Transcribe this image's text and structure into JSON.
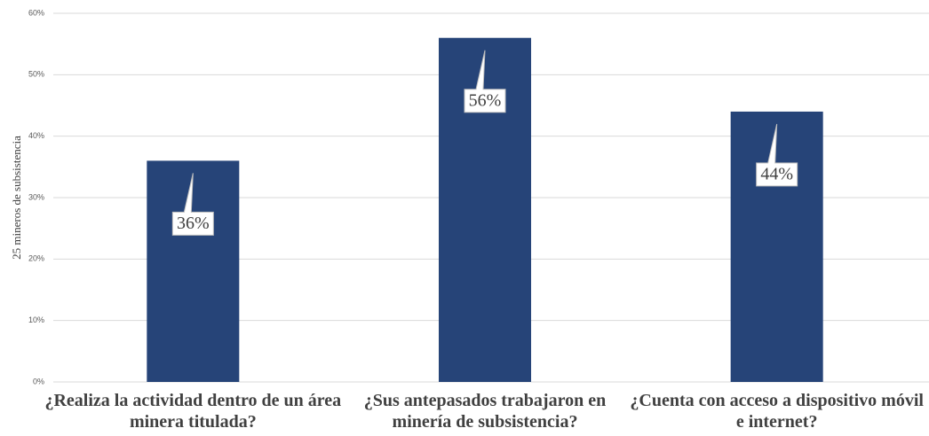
{
  "chart_data": {
    "type": "bar",
    "y_label": "25 mineros de subsistencia",
    "categories": [
      "¿Realiza la actividad dentro de un área minera titulada?",
      "¿Sus antepasados trabajaron en minería de subsistencia?",
      "¿Cuenta con acceso a dispositivo móvil e internet?"
    ],
    "values": [
      36,
      56,
      44
    ],
    "value_labels": [
      "36%",
      "56%",
      "44%"
    ],
    "color": "#264478",
    "ylim": [
      0,
      60
    ],
    "yticks": [
      {
        "value": 0,
        "label": "0%"
      },
      {
        "value": 10,
        "label": "10%"
      },
      {
        "value": 20,
        "label": "20%"
      },
      {
        "value": 30,
        "label": "30%"
      },
      {
        "value": 40,
        "label": "40%"
      },
      {
        "value": 50,
        "label": "50%"
      },
      {
        "value": 60,
        "label": "60%"
      }
    ],
    "grid": true
  }
}
